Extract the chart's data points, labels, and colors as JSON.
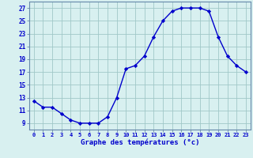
{
  "hours": [
    0,
    1,
    2,
    3,
    4,
    5,
    6,
    7,
    8,
    9,
    10,
    11,
    12,
    13,
    14,
    15,
    16,
    17,
    18,
    19,
    20,
    21,
    22,
    23
  ],
  "temperatures": [
    12.5,
    11.5,
    11.5,
    10.5,
    9.5,
    9.0,
    9.0,
    9.0,
    10.0,
    13.0,
    17.5,
    18.0,
    19.5,
    22.5,
    25.0,
    26.5,
    27.0,
    27.0,
    27.0,
    26.5,
    22.5,
    19.5,
    18.0,
    17.0
  ],
  "xlim": [
    -0.5,
    23.5
  ],
  "ylim": [
    8.0,
    28.0
  ],
  "yticks": [
    9,
    11,
    13,
    15,
    17,
    19,
    21,
    23,
    25,
    27
  ],
  "xticks": [
    0,
    1,
    2,
    3,
    4,
    5,
    6,
    7,
    8,
    9,
    10,
    11,
    12,
    13,
    14,
    15,
    16,
    17,
    18,
    19,
    20,
    21,
    22,
    23
  ],
  "xlabel": "Graphe des températures (°c)",
  "line_color": "#0000cc",
  "marker": "D",
  "marker_size": 2.2,
  "bg_color": "#d8f0f0",
  "grid_color": "#a0c8c8",
  "spine_color": "#6688aa"
}
